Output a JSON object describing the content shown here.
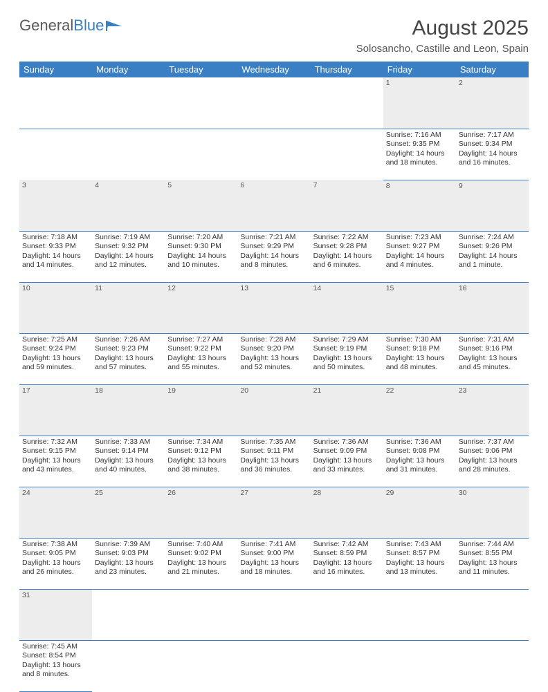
{
  "logo": {
    "textA": "General",
    "textB": "Blue"
  },
  "title": "August 2025",
  "location": "Solosancho, Castille and Leon, Spain",
  "colors": {
    "headerBg": "#3a7fc4",
    "headerText": "#ffffff",
    "dayBg": "#ededed",
    "border": "#3a7fc4",
    "text": "#333333"
  },
  "dayHeaders": [
    "Sunday",
    "Monday",
    "Tuesday",
    "Wednesday",
    "Thursday",
    "Friday",
    "Saturday"
  ],
  "weeks": [
    [
      null,
      null,
      null,
      null,
      null,
      {
        "n": "1",
        "sr": "Sunrise: 7:16 AM",
        "ss": "Sunset: 9:35 PM",
        "d1": "Daylight: 14 hours",
        "d2": "and 18 minutes."
      },
      {
        "n": "2",
        "sr": "Sunrise: 7:17 AM",
        "ss": "Sunset: 9:34 PM",
        "d1": "Daylight: 14 hours",
        "d2": "and 16 minutes."
      }
    ],
    [
      {
        "n": "3",
        "sr": "Sunrise: 7:18 AM",
        "ss": "Sunset: 9:33 PM",
        "d1": "Daylight: 14 hours",
        "d2": "and 14 minutes."
      },
      {
        "n": "4",
        "sr": "Sunrise: 7:19 AM",
        "ss": "Sunset: 9:32 PM",
        "d1": "Daylight: 14 hours",
        "d2": "and 12 minutes."
      },
      {
        "n": "5",
        "sr": "Sunrise: 7:20 AM",
        "ss": "Sunset: 9:30 PM",
        "d1": "Daylight: 14 hours",
        "d2": "and 10 minutes."
      },
      {
        "n": "6",
        "sr": "Sunrise: 7:21 AM",
        "ss": "Sunset: 9:29 PM",
        "d1": "Daylight: 14 hours",
        "d2": "and 8 minutes."
      },
      {
        "n": "7",
        "sr": "Sunrise: 7:22 AM",
        "ss": "Sunset: 9:28 PM",
        "d1": "Daylight: 14 hours",
        "d2": "and 6 minutes."
      },
      {
        "n": "8",
        "sr": "Sunrise: 7:23 AM",
        "ss": "Sunset: 9:27 PM",
        "d1": "Daylight: 14 hours",
        "d2": "and 4 minutes."
      },
      {
        "n": "9",
        "sr": "Sunrise: 7:24 AM",
        "ss": "Sunset: 9:26 PM",
        "d1": "Daylight: 14 hours",
        "d2": "and 1 minute."
      }
    ],
    [
      {
        "n": "10",
        "sr": "Sunrise: 7:25 AM",
        "ss": "Sunset: 9:24 PM",
        "d1": "Daylight: 13 hours",
        "d2": "and 59 minutes."
      },
      {
        "n": "11",
        "sr": "Sunrise: 7:26 AM",
        "ss": "Sunset: 9:23 PM",
        "d1": "Daylight: 13 hours",
        "d2": "and 57 minutes."
      },
      {
        "n": "12",
        "sr": "Sunrise: 7:27 AM",
        "ss": "Sunset: 9:22 PM",
        "d1": "Daylight: 13 hours",
        "d2": "and 55 minutes."
      },
      {
        "n": "13",
        "sr": "Sunrise: 7:28 AM",
        "ss": "Sunset: 9:20 PM",
        "d1": "Daylight: 13 hours",
        "d2": "and 52 minutes."
      },
      {
        "n": "14",
        "sr": "Sunrise: 7:29 AM",
        "ss": "Sunset: 9:19 PM",
        "d1": "Daylight: 13 hours",
        "d2": "and 50 minutes."
      },
      {
        "n": "15",
        "sr": "Sunrise: 7:30 AM",
        "ss": "Sunset: 9:18 PM",
        "d1": "Daylight: 13 hours",
        "d2": "and 48 minutes."
      },
      {
        "n": "16",
        "sr": "Sunrise: 7:31 AM",
        "ss": "Sunset: 9:16 PM",
        "d1": "Daylight: 13 hours",
        "d2": "and 45 minutes."
      }
    ],
    [
      {
        "n": "17",
        "sr": "Sunrise: 7:32 AM",
        "ss": "Sunset: 9:15 PM",
        "d1": "Daylight: 13 hours",
        "d2": "and 43 minutes."
      },
      {
        "n": "18",
        "sr": "Sunrise: 7:33 AM",
        "ss": "Sunset: 9:14 PM",
        "d1": "Daylight: 13 hours",
        "d2": "and 40 minutes."
      },
      {
        "n": "19",
        "sr": "Sunrise: 7:34 AM",
        "ss": "Sunset: 9:12 PM",
        "d1": "Daylight: 13 hours",
        "d2": "and 38 minutes."
      },
      {
        "n": "20",
        "sr": "Sunrise: 7:35 AM",
        "ss": "Sunset: 9:11 PM",
        "d1": "Daylight: 13 hours",
        "d2": "and 36 minutes."
      },
      {
        "n": "21",
        "sr": "Sunrise: 7:36 AM",
        "ss": "Sunset: 9:09 PM",
        "d1": "Daylight: 13 hours",
        "d2": "and 33 minutes."
      },
      {
        "n": "22",
        "sr": "Sunrise: 7:36 AM",
        "ss": "Sunset: 9:08 PM",
        "d1": "Daylight: 13 hours",
        "d2": "and 31 minutes."
      },
      {
        "n": "23",
        "sr": "Sunrise: 7:37 AM",
        "ss": "Sunset: 9:06 PM",
        "d1": "Daylight: 13 hours",
        "d2": "and 28 minutes."
      }
    ],
    [
      {
        "n": "24",
        "sr": "Sunrise: 7:38 AM",
        "ss": "Sunset: 9:05 PM",
        "d1": "Daylight: 13 hours",
        "d2": "and 26 minutes."
      },
      {
        "n": "25",
        "sr": "Sunrise: 7:39 AM",
        "ss": "Sunset: 9:03 PM",
        "d1": "Daylight: 13 hours",
        "d2": "and 23 minutes."
      },
      {
        "n": "26",
        "sr": "Sunrise: 7:40 AM",
        "ss": "Sunset: 9:02 PM",
        "d1": "Daylight: 13 hours",
        "d2": "and 21 minutes."
      },
      {
        "n": "27",
        "sr": "Sunrise: 7:41 AM",
        "ss": "Sunset: 9:00 PM",
        "d1": "Daylight: 13 hours",
        "d2": "and 18 minutes."
      },
      {
        "n": "28",
        "sr": "Sunrise: 7:42 AM",
        "ss": "Sunset: 8:59 PM",
        "d1": "Daylight: 13 hours",
        "d2": "and 16 minutes."
      },
      {
        "n": "29",
        "sr": "Sunrise: 7:43 AM",
        "ss": "Sunset: 8:57 PM",
        "d1": "Daylight: 13 hours",
        "d2": "and 13 minutes."
      },
      {
        "n": "30",
        "sr": "Sunrise: 7:44 AM",
        "ss": "Sunset: 8:55 PM",
        "d1": "Daylight: 13 hours",
        "d2": "and 11 minutes."
      }
    ],
    [
      {
        "n": "31",
        "sr": "Sunrise: 7:45 AM",
        "ss": "Sunset: 8:54 PM",
        "d1": "Daylight: 13 hours",
        "d2": "and 8 minutes."
      },
      null,
      null,
      null,
      null,
      null,
      null
    ]
  ]
}
